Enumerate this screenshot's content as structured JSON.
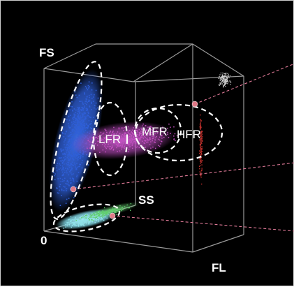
{
  "chart_data": {
    "type": "scatter",
    "title": "",
    "axes": {
      "fs_label": "FS",
      "ss_label": "SS",
      "fl_label": "FL",
      "origin_label": "0"
    },
    "regions": [
      {
        "name": "LFR",
        "label": "LFR",
        "color": "#c24fc0"
      },
      {
        "name": "MFR",
        "label": "MFR",
        "color": "#c24fc0"
      },
      {
        "name": "HFR",
        "label": "HFR",
        "color": "#c24fc0"
      }
    ],
    "series_colors": {
      "blue_cluster": "#2f5fd8",
      "magenta_cluster": "#c24fc0",
      "cyan_cluster": "#8fe0e8",
      "green_cluster": "#5fcf6a",
      "grey_cluster": "#d0d0d0",
      "red_cluster": "#c0302c",
      "marker": "#e07a88",
      "dashed_leader": "#e07a98"
    },
    "grid": false,
    "legend": "none"
  }
}
